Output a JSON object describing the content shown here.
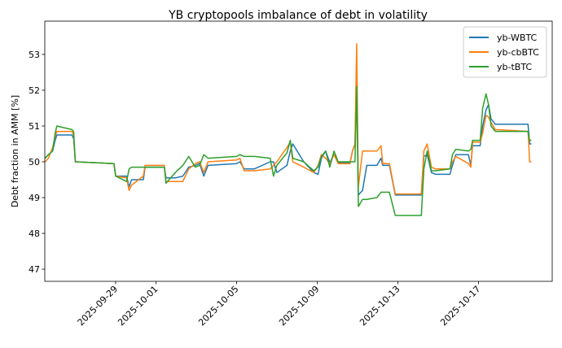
{
  "chart_data": {
    "type": "line",
    "title": "YB cryptopools imbalance of debt in volatility",
    "xlabel": "",
    "ylabel": "Debt fraction in AMM [%]",
    "xlim": [
      "2025-09-25T11:40",
      "2025-10-20T15:50"
    ],
    "ylim": [
      46.66,
      53.93
    ],
    "x_ticks": [
      "2025-09-29",
      "2025-10-01",
      "2025-10-05",
      "2025-10-09",
      "2025-10-13",
      "2025-10-17"
    ],
    "y_ticks": [
      47,
      48,
      49,
      50,
      51,
      52,
      53
    ],
    "grid": false,
    "legend_placement": "top-right",
    "x": [
      "2025-09-25T12:00",
      "2025-09-25T16:00",
      "2025-09-25T21:00",
      "2025-09-26T00:00",
      "2025-09-26T02:00",
      "2025-09-26T20:00",
      "2025-09-26T22:00",
      "2025-09-27T00:00",
      "2025-09-28T22:00",
      "2025-09-29T00:00",
      "2025-09-29T13:00",
      "2025-09-29T16:00",
      "2025-09-29T19:00",
      "2025-09-30T09:00",
      "2025-09-30T11:00",
      "2025-10-01T10:00",
      "2025-10-01T12:00",
      "2025-10-01T23:00",
      "2025-10-02T08:00",
      "2025-10-02T15:00",
      "2025-10-02T23:00",
      "2025-10-03T04:00",
      "2025-10-03T09:00",
      "2025-10-03T14:00",
      "2025-10-05T00:00",
      "2025-10-05T04:00",
      "2025-10-05T09:00",
      "2025-10-05T21:00",
      "2025-10-06T16:00",
      "2025-10-06T20:00",
      "2025-10-07T00:00",
      "2025-10-07T12:00",
      "2025-10-07T16:00",
      "2025-10-07T19:00",
      "2025-10-08T08:00",
      "2025-10-08T20:00",
      "2025-10-09T01:00",
      "2025-10-09T05:00",
      "2025-10-09T10:00",
      "2025-10-09T15:00",
      "2025-10-09T20:00",
      "2025-10-10T01:00",
      "2025-10-10T15:00",
      "2025-10-10T18:00",
      "2025-10-10T21:00",
      "2025-10-10T23:00",
      "2025-10-11T01:00",
      "2025-10-11T06:00",
      "2025-10-11T11:00",
      "2025-10-11T23:00",
      "2025-10-12T04:00",
      "2025-10-12T06:00",
      "2025-10-12T14:00",
      "2025-10-12T21:00",
      "2025-10-14T04:00",
      "2025-10-14T07:00",
      "2025-10-14T11:00",
      "2025-10-14T16:00",
      "2025-10-14T21:00",
      "2025-10-15T14:00",
      "2025-10-15T17:00",
      "2025-10-15T21:00",
      "2025-10-16T12:00",
      "2025-10-16T15:00",
      "2025-10-16T17:00",
      "2025-10-17T02:00",
      "2025-10-17T05:00",
      "2025-10-17T09:00",
      "2025-10-17T12:00",
      "2025-10-17T15:00",
      "2025-10-17T20:00",
      "2025-10-19T11:00",
      "2025-10-19T13:00",
      "2025-10-19T15:00"
    ],
    "series": [
      {
        "name": "yb-WBTC",
        "color": "#1f77b4",
        "values": [
          50.1,
          50.2,
          50.3,
          50.6,
          50.75,
          50.75,
          50.65,
          50.0,
          49.95,
          49.6,
          49.6,
          49.3,
          49.5,
          49.5,
          49.85,
          49.85,
          49.55,
          49.55,
          49.6,
          49.85,
          49.9,
          49.95,
          49.6,
          49.9,
          49.95,
          50.0,
          49.8,
          49.8,
          50.0,
          50.0,
          49.7,
          49.9,
          50.3,
          50.5,
          50.0,
          49.7,
          49.65,
          50.1,
          50.3,
          49.98,
          50.2,
          49.98,
          49.98,
          50.3,
          50.5,
          52.1,
          49.07,
          49.2,
          49.9,
          49.9,
          50.1,
          49.9,
          49.9,
          49.07,
          49.07,
          50.15,
          50.2,
          49.7,
          49.65,
          49.65,
          49.9,
          50.2,
          50.2,
          49.9,
          50.45,
          50.45,
          51.0,
          51.45,
          51.6,
          51.2,
          51.05,
          51.05,
          50.5,
          50.5
        ]
      },
      {
        "name": "yb-cbBTC",
        "color": "#ff7f0e",
        "values": [
          50.0,
          50.1,
          50.4,
          50.7,
          50.85,
          50.85,
          50.75,
          50.0,
          49.95,
          49.6,
          49.55,
          49.2,
          49.35,
          49.6,
          49.9,
          49.9,
          49.45,
          49.45,
          49.45,
          49.8,
          49.95,
          50.0,
          49.7,
          50.0,
          50.05,
          50.1,
          49.75,
          49.75,
          49.8,
          49.9,
          50.0,
          50.4,
          50.55,
          50.0,
          49.85,
          49.7,
          49.9,
          50.2,
          50.1,
          49.95,
          50.2,
          49.95,
          49.95,
          50.3,
          50.5,
          53.3,
          49.3,
          50.3,
          50.3,
          50.3,
          50.45,
          49.95,
          49.95,
          49.1,
          49.1,
          50.3,
          50.5,
          49.85,
          49.8,
          49.8,
          50.0,
          50.15,
          49.95,
          49.85,
          50.55,
          50.55,
          50.8,
          51.3,
          51.25,
          51.1,
          50.9,
          50.85,
          50.0,
          50.0
        ]
      },
      {
        "name": "yb-tBTC",
        "color": "#2ca02c",
        "values": [
          50.1,
          50.2,
          50.3,
          50.8,
          51.0,
          50.9,
          50.85,
          50.0,
          49.95,
          49.6,
          49.45,
          49.8,
          49.85,
          49.85,
          49.85,
          49.85,
          49.4,
          49.7,
          49.9,
          50.15,
          49.85,
          49.9,
          50.2,
          50.1,
          50.15,
          50.2,
          50.15,
          50.15,
          50.1,
          49.6,
          49.9,
          50.25,
          50.6,
          50.1,
          50.0,
          49.75,
          49.85,
          50.15,
          50.3,
          49.85,
          50.3,
          50.0,
          50.0,
          50.0,
          50.0,
          52.1,
          48.75,
          48.95,
          48.95,
          49.0,
          49.15,
          49.15,
          49.15,
          48.5,
          48.5,
          49.8,
          50.3,
          49.75,
          49.75,
          49.8,
          50.2,
          50.35,
          50.3,
          50.35,
          50.6,
          50.6,
          51.5,
          51.9,
          51.6,
          51.0,
          50.85,
          50.85,
          50.6,
          50.6
        ]
      }
    ]
  }
}
